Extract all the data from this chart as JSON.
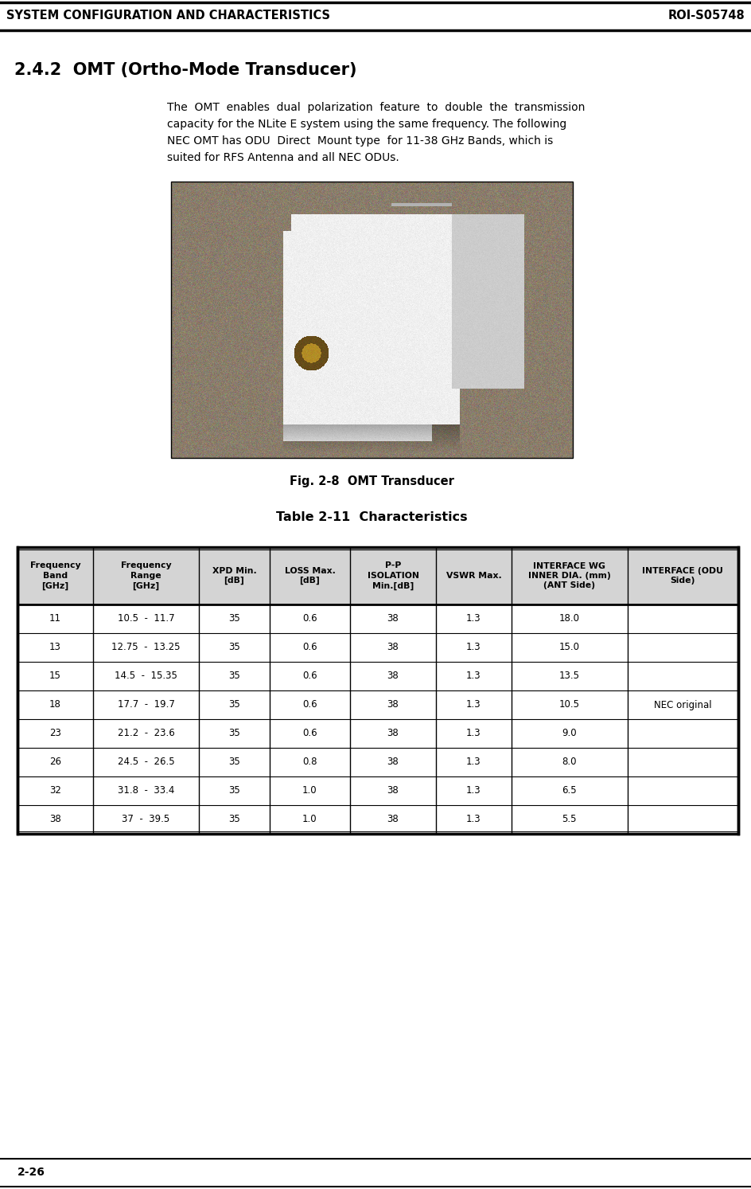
{
  "header_title_left": "SYSTEM CONFIGURATION AND CHARACTERISTICS",
  "header_title_right": "ROI-S05748",
  "section_title": "2.4.2  OMT (Ortho-Mode Transducer)",
  "body_text_lines": [
    "The  OMT  enables  dual  polarization  feature  to  double  the  transmission",
    "capacity for the NLite E system using the same frequency. The following",
    "NEC OMT has ODU  Direct  Mount type  for 11-38 GHz Bands, which is",
    "suited for RFS Antenna and all NEC ODUs."
  ],
  "fig_caption": "Fig. 2-8  OMT Transducer",
  "table_caption": "Table 2-11  Characteristics",
  "table_headers": [
    "Frequency\nBand\n[GHz]",
    "Frequency\nRange\n[GHz]",
    "XPD Min.\n[dB]",
    "LOSS Max.\n[dB]",
    "P-P\nISOLATION\nMin.[dB]",
    "VSWR Max.",
    "INTERFACE WG\nINNER DIA. (mm)\n(ANT Side)",
    "INTERFACE (ODU\nSide)"
  ],
  "table_rows": [
    [
      "11",
      "10.5  -  11.7",
      "35",
      "0.6",
      "38",
      "1.3",
      "18.0",
      ""
    ],
    [
      "13",
      "12.75  -  13.25",
      "35",
      "0.6",
      "38",
      "1.3",
      "15.0",
      ""
    ],
    [
      "15",
      "14.5  -  15.35",
      "35",
      "0.6",
      "38",
      "1.3",
      "13.5",
      ""
    ],
    [
      "18",
      "17.7  -  19.7",
      "35",
      "0.6",
      "38",
      "1.3",
      "10.5",
      "NEC original"
    ],
    [
      "23",
      "21.2  -  23.6",
      "35",
      "0.6",
      "38",
      "1.3",
      "9.0",
      ""
    ],
    [
      "26",
      "24.5  -  26.5",
      "35",
      "0.8",
      "38",
      "1.3",
      "8.0",
      ""
    ],
    [
      "32",
      "31.8  -  33.4",
      "35",
      "1.0",
      "38",
      "1.3",
      "6.5",
      ""
    ],
    [
      "38",
      "37  -  39.5",
      "35",
      "1.0",
      "38",
      "1.3",
      "5.5",
      ""
    ]
  ],
  "footer_text": "2-26",
  "bg_color": "#ffffff",
  "img_bg_color": "#8a7d6a",
  "img_device_color": "#f0f0ee",
  "img_shadow_color": "#6a5e50"
}
